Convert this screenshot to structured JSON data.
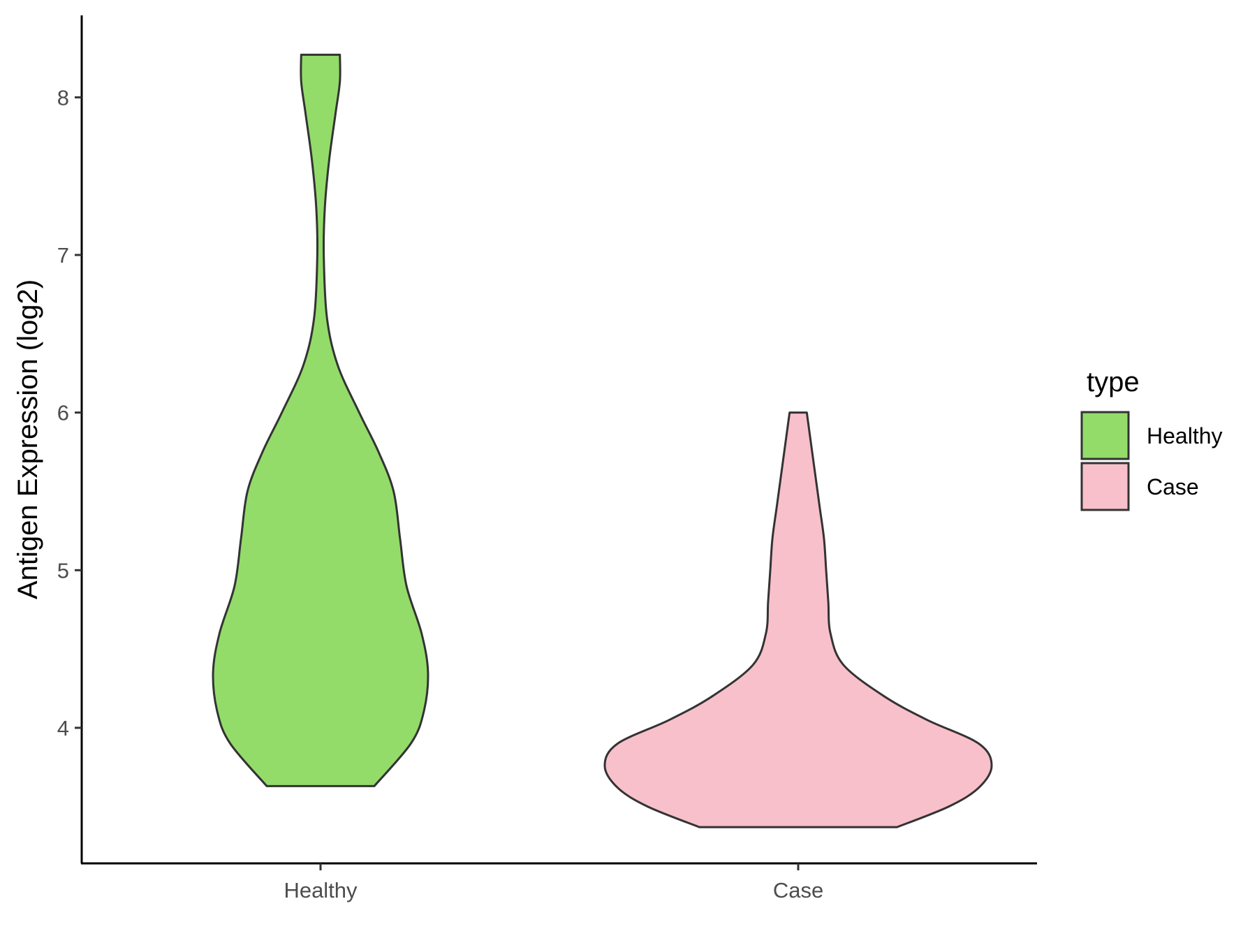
{
  "chart_data": {
    "type": "violin",
    "ylabel": "Antigen Expression (log2)",
    "xlabel": "",
    "ylim": [
      3.14,
      8.52
    ],
    "yticks": [
      4,
      5,
      6,
      7,
      8
    ],
    "categories": [
      "Healthy",
      "Case"
    ],
    "legend": {
      "title": "type",
      "position": "right",
      "entries": [
        {
          "label": "Healthy",
          "color": "#93dc6a"
        },
        {
          "label": "Case",
          "color": "#f8c0cb"
        }
      ]
    },
    "grid": false,
    "series": [
      {
        "name": "Healthy",
        "color": "#93dc6a",
        "min": 3.63,
        "max": 8.27,
        "profile": [
          [
            3.63,
            0.25
          ],
          [
            3.9,
            0.42
          ],
          [
            4.1,
            0.48
          ],
          [
            4.35,
            0.5
          ],
          [
            4.6,
            0.47
          ],
          [
            4.9,
            0.4
          ],
          [
            5.2,
            0.37
          ],
          [
            5.5,
            0.34
          ],
          [
            5.75,
            0.27
          ],
          [
            6.0,
            0.18
          ],
          [
            6.3,
            0.08
          ],
          [
            6.6,
            0.03
          ],
          [
            7.0,
            0.015
          ],
          [
            7.3,
            0.02
          ],
          [
            7.6,
            0.04
          ],
          [
            7.9,
            0.07
          ],
          [
            8.1,
            0.09
          ],
          [
            8.27,
            0.09
          ]
        ]
      },
      {
        "name": "Case",
        "color": "#f8c0cb",
        "min": 3.37,
        "max": 6.0,
        "profile": [
          [
            3.37,
            0.46
          ],
          [
            3.5,
            0.7
          ],
          [
            3.62,
            0.84
          ],
          [
            3.76,
            0.9
          ],
          [
            3.9,
            0.84
          ],
          [
            4.05,
            0.6
          ],
          [
            4.2,
            0.4
          ],
          [
            4.4,
            0.21
          ],
          [
            4.6,
            0.15
          ],
          [
            4.8,
            0.14
          ],
          [
            5.0,
            0.13
          ],
          [
            5.2,
            0.12
          ],
          [
            5.4,
            0.1
          ],
          [
            5.6,
            0.08
          ],
          [
            5.8,
            0.06
          ],
          [
            6.0,
            0.04
          ]
        ]
      }
    ]
  }
}
